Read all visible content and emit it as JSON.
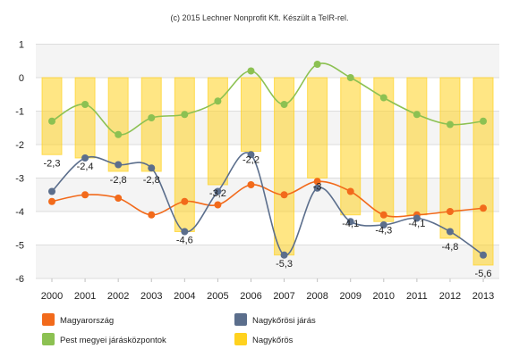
{
  "chart_data": {
    "type": "bar",
    "credit": "(c) 2015 Lechner Nonprofit Kft. Készült a TeIR-rel.",
    "categories": [
      "2000",
      "2001",
      "2002",
      "2003",
      "2004",
      "2005",
      "2006",
      "2007",
      "2008",
      "2009",
      "2010",
      "2011",
      "2012",
      "2013"
    ],
    "ylim": [
      -6,
      1
    ],
    "yticks": [
      1,
      0,
      -1,
      -2,
      -3,
      -4,
      -5,
      -6
    ],
    "grid": true,
    "legend_position": "bottom",
    "series": [
      {
        "name": "Magyarország",
        "type": "line",
        "color": "#F26A1B",
        "values": [
          -3.7,
          -3.5,
          -3.6,
          -4.1,
          -3.7,
          -3.8,
          -3.2,
          -3.5,
          -3.1,
          -3.4,
          -4.1,
          -4.1,
          -4.0,
          -3.9
        ]
      },
      {
        "name": "Nagykőrösi járás",
        "type": "line",
        "color": "#5B6E8C",
        "values": [
          -3.4,
          -2.4,
          -2.6,
          -2.7,
          -4.6,
          -3.4,
          -2.3,
          -5.3,
          -3.3,
          -4.3,
          -4.4,
          -4.2,
          -4.6,
          -5.3
        ]
      },
      {
        "name": "Pest megyei járásközpontok",
        "type": "line",
        "color": "#8CC152",
        "values": [
          -1.3,
          -0.8,
          -1.7,
          -1.2,
          -1.1,
          -0.7,
          0.2,
          -0.8,
          0.4,
          0.0,
          -0.6,
          -1.1,
          -1.4,
          -1.3
        ]
      },
      {
        "name": "Nagykőrös",
        "type": "bar",
        "color": "#FFD21F",
        "values": [
          -2.3,
          -2.4,
          -2.8,
          -2.8,
          -4.6,
          -3.2,
          -2.2,
          -5.3,
          -3.0,
          -4.1,
          -4.3,
          -4.1,
          -4.8,
          -5.6
        ],
        "data_labels": [
          "-2,3",
          "-2,4",
          "-2,8",
          "-2,8",
          "-4,6",
          "-3,2",
          "-2,2",
          "-5,3",
          "-3",
          "-4,1",
          "-4,3",
          "-4,1",
          "-4,8",
          "-5,6"
        ]
      }
    ]
  }
}
